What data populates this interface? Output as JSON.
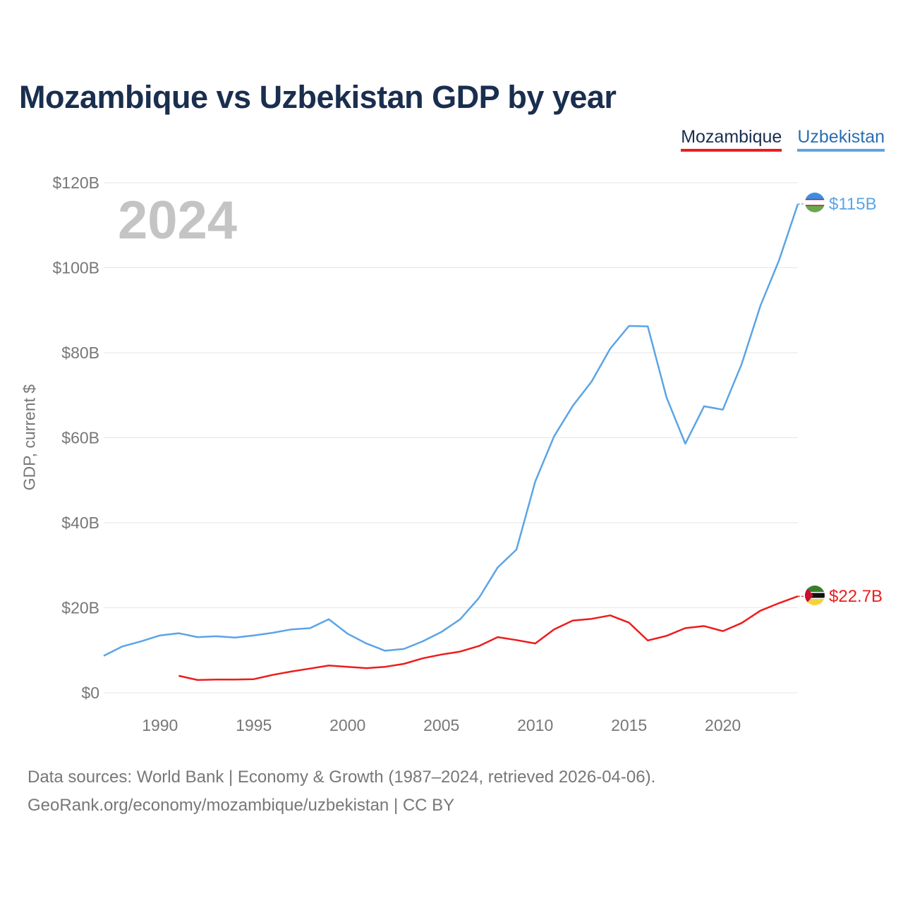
{
  "title": "Mozambique vs Uzbekistan GDP by year",
  "legend": [
    {
      "name": "Mozambique",
      "color": "#ee1c1c"
    },
    {
      "name": "Uzbekistan",
      "color": "#5ba4e6"
    }
  ],
  "year_display": "2024",
  "source_line1": "Data sources: World Bank | Economy & Growth (1987–2024, retrieved 2026-04-06).",
  "source_line2": "GeoRank.org/economy/mozambique/uzbekistan | CC BY",
  "chart_data": {
    "type": "line",
    "title": "Mozambique vs Uzbekistan GDP by year",
    "xlabel": "",
    "ylabel": "GDP, current $",
    "xlim": [
      1987,
      2024
    ],
    "ylim": [
      0,
      120
    ],
    "xticks": [
      1990,
      1995,
      2000,
      2005,
      2010,
      2015,
      2020
    ],
    "xtick_labels": [
      "1990",
      "1995",
      "2000",
      "2005",
      "2010",
      "2015",
      "2020"
    ],
    "yticks": [
      0,
      20,
      40,
      60,
      80,
      100,
      120
    ],
    "ytick_labels": [
      "$0",
      "$20B",
      "$40B",
      "$60B",
      "$80B",
      "$100B",
      "$120B"
    ],
    "grid": true,
    "series": [
      {
        "name": "Uzbekistan",
        "color": "#5ba4e6",
        "end_label": "$115B",
        "x": [
          1987,
          1988,
          1989,
          1990,
          1991,
          1992,
          1993,
          1994,
          1995,
          1996,
          1997,
          1998,
          1999,
          2000,
          2001,
          2002,
          2003,
          2004,
          2005,
          2006,
          2007,
          2008,
          2009,
          2010,
          2011,
          2012,
          2013,
          2014,
          2015,
          2016,
          2017,
          2018,
          2019,
          2020,
          2021,
          2022,
          2023,
          2024
        ],
        "values": [
          8.7,
          10.9,
          12.1,
          13.5,
          14.0,
          13.1,
          13.3,
          13.0,
          13.5,
          14.1,
          14.9,
          15.2,
          17.3,
          13.9,
          11.6,
          9.9,
          10.3,
          12.1,
          14.3,
          17.3,
          22.3,
          29.5,
          33.7,
          49.7,
          60.3,
          67.5,
          73.2,
          81.0,
          86.3,
          86.2,
          69.5,
          58.6,
          67.4,
          66.6,
          77.3,
          91.0,
          101.8,
          115.0
        ]
      },
      {
        "name": "Mozambique",
        "color": "#ee1c1c",
        "end_label": "$22.7B",
        "x": [
          1991,
          1992,
          1993,
          1994,
          1995,
          1996,
          1997,
          1998,
          1999,
          2000,
          2001,
          2002,
          2003,
          2004,
          2005,
          2006,
          2007,
          2008,
          2009,
          2010,
          2011,
          2012,
          2013,
          2014,
          2015,
          2016,
          2017,
          2018,
          2019,
          2020,
          2021,
          2022,
          2023,
          2024
        ],
        "values": [
          4.0,
          3.0,
          3.1,
          3.1,
          3.2,
          4.2,
          5.0,
          5.7,
          6.4,
          6.1,
          5.8,
          6.1,
          6.8,
          8.1,
          9.0,
          9.7,
          11.0,
          13.1,
          12.4,
          11.6,
          14.9,
          17.0,
          17.4,
          18.2,
          16.5,
          12.3,
          13.4,
          15.2,
          15.7,
          14.5,
          16.4,
          19.3,
          21.1,
          22.7
        ]
      }
    ]
  }
}
